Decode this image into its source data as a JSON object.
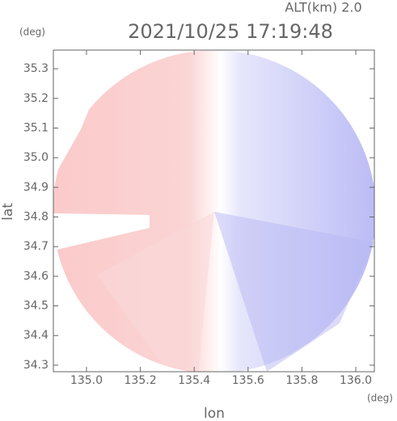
{
  "chart_data": {
    "type": "radar",
    "title": "2021/10/25 17:19:48",
    "annotation": "ALT(km) 2.0",
    "x_label": "lon",
    "y_label": "lat",
    "x_unit": "(deg)",
    "y_unit": "(deg)",
    "xlim": [
      134.877,
      136.069
    ],
    "ylim": [
      34.278,
      35.363
    ],
    "xticks": [
      {
        "value": 135.0,
        "label": "135.0"
      },
      135.2,
      135.4,
      135.6,
      135.8,
      {
        "value": 136.0,
        "label": "136.0"
      }
    ],
    "yticks": [
      34.3,
      34.4,
      34.5,
      34.6,
      34.7,
      34.8,
      34.9,
      {
        "value": 35.0,
        "label": "35.0"
      },
      35.1,
      35.2,
      35.3
    ]
  }
}
